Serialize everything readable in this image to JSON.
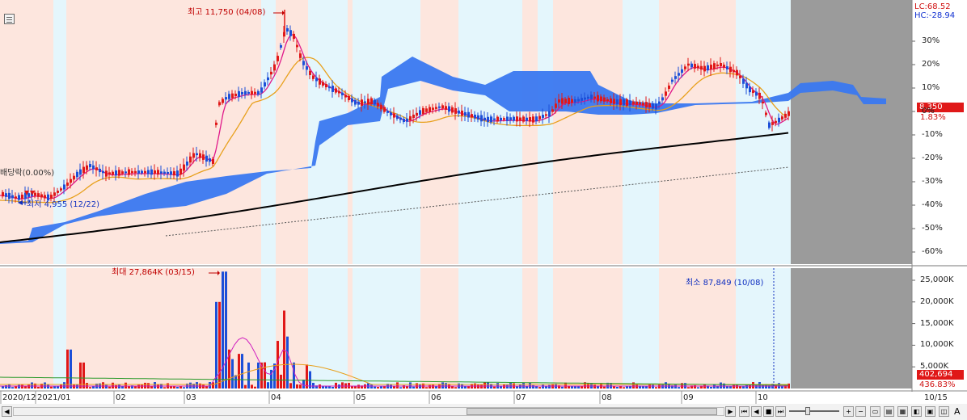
{
  "header": {
    "lc_label": "LC:68.52",
    "hc_label": "HC:-28.94"
  },
  "annotations": {
    "high": "최고 11,750 (04/08)",
    "low": "최저 4,955 (12/22)",
    "dividend": "배당락(0.00%)",
    "vol_max": "최대 27,864K (03/15)",
    "vol_min": "최소 87,849 (10/08)"
  },
  "price_axis_ticks": [
    "30%",
    "20%",
    "10%",
    "0%",
    "-10%",
    "-20%",
    "-30%",
    "-40%",
    "-50%",
    "-60%"
  ],
  "volume_axis_ticks": [
    "25,000K",
    "20,000K",
    "15,000K",
    "10,000K",
    "5,000K"
  ],
  "current_price": {
    "value": "8,350",
    "change": "1.83%"
  },
  "current_volume": {
    "value": "402,694",
    "change": "436.83%"
  },
  "months": [
    "2020/12",
    "2021/01",
    "02",
    "03",
    "04",
    "05",
    "06",
    "07",
    "08",
    "09",
    "10"
  ],
  "end_date": "10/15",
  "chart_data": {
    "type": "candlestick",
    "period": {
      "start": "2020-12-01",
      "end": "2021-10-15"
    },
    "price": {
      "high": {
        "value": 11750,
        "date": "2021-04-08"
      },
      "low": {
        "value": 4955,
        "date": "2020-12-22"
      },
      "last": 8350,
      "last_change_pct": 1.83,
      "axis_scale": "percent",
      "ylim_pct": [
        -65,
        35
      ],
      "series": [
        {
          "name": "moving-average-short",
          "color": "#e0198a"
        },
        {
          "name": "moving-average-mid",
          "color": "#e8a01c"
        },
        {
          "name": "moving-average-long",
          "color": "#000000"
        },
        {
          "name": "moving-average-very-long",
          "color": "#555555",
          "style": "dashed"
        },
        {
          "name": "ichimoku-cloud",
          "color": "#3a78f0"
        }
      ]
    },
    "volume": {
      "max": {
        "value": "27,864K",
        "date": "2021-03-15"
      },
      "min": {
        "value": "87,849",
        "date": "2021-10-08"
      },
      "last": 402694,
      "last_change_pct": 436.83,
      "ylim_k": [
        0,
        28000
      ]
    }
  }
}
